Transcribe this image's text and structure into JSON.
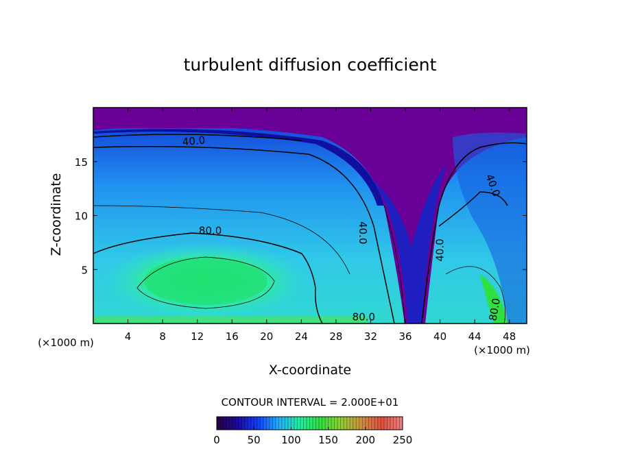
{
  "chart_data": {
    "type": "contour",
    "title": "turbulent diffusion coefficient",
    "x_label": "X-coordinate",
    "y_label": "Z-coordinate",
    "x_unit": "(×1000 m)",
    "y_unit": "(×1000 m)",
    "xlim": [
      0,
      50
    ],
    "xticks": [
      4,
      8,
      12,
      16,
      20,
      24,
      28,
      32,
      36,
      40,
      44,
      48
    ],
    "ylim": [
      0,
      20
    ],
    "yticks": [
      5,
      10,
      15
    ],
    "contour_interval_label": "CONTOUR INTERVAL = 2.000E+01",
    "contour_labels": [
      {
        "value": 40,
        "label": "40.0",
        "x": 11.6,
        "y": 16.9
      },
      {
        "value": 80,
        "label": "80.0",
        "x": 13.5,
        "y": 8.6
      },
      {
        "value": 40,
        "label": "40.0",
        "x": 31.1,
        "y": 8.4
      },
      {
        "value": 40,
        "label": "40.0",
        "x": 46.1,
        "y": 12.8
      },
      {
        "value": 40,
        "label": "40.0",
        "x": 40.0,
        "y": 6.8
      },
      {
        "value": 80,
        "label": "80.0",
        "x": 31.2,
        "y": 0.6
      },
      {
        "value": 80,
        "label": "80.0",
        "x": 46.3,
        "y": 1.3
      }
    ],
    "colorbar": {
      "lim": [
        0,
        250
      ],
      "ticks": [
        0,
        50,
        100,
        150,
        200,
        250
      ],
      "colors": [
        "#2a0040",
        "#1a0aa0",
        "#1040ff",
        "#20b0ff",
        "#20f0a0",
        "#30e040",
        "#90d030",
        "#d09040",
        "#e05040",
        "#f08080"
      ]
    }
  }
}
